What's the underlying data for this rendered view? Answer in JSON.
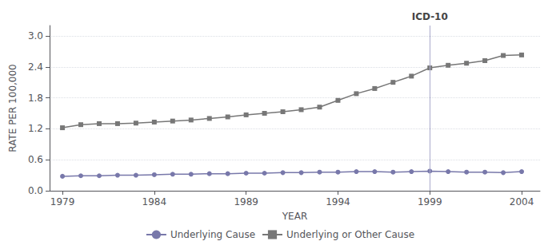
{
  "chart_data": {
    "type": "line",
    "x": [
      1979,
      1980,
      1981,
      1982,
      1983,
      1984,
      1985,
      1986,
      1987,
      1988,
      1989,
      1990,
      1991,
      1992,
      1993,
      1994,
      1995,
      1996,
      1997,
      1998,
      1999,
      2000,
      2001,
      2002,
      2003,
      2004
    ],
    "series": [
      {
        "name": "Underlying Cause",
        "color": "#7878aa",
        "marker": "circle",
        "values": [
          0.28,
          0.29,
          0.29,
          0.3,
          0.3,
          0.31,
          0.32,
          0.32,
          0.33,
          0.33,
          0.34,
          0.34,
          0.35,
          0.35,
          0.36,
          0.36,
          0.37,
          0.37,
          0.36,
          0.37,
          0.38,
          0.37,
          0.36,
          0.36,
          0.35,
          0.37
        ]
      },
      {
        "name": "Underlying or Other Cause",
        "color": "#777777",
        "marker": "square",
        "values": [
          1.22,
          1.28,
          1.3,
          1.3,
          1.31,
          1.33,
          1.35,
          1.37,
          1.4,
          1.43,
          1.47,
          1.5,
          1.53,
          1.57,
          1.62,
          1.75,
          1.88,
          1.98,
          2.1,
          2.22,
          2.38,
          2.43,
          2.47,
          2.52,
          2.62,
          2.63
        ]
      }
    ],
    "xlabel": "YEAR",
    "ylabel": "RATE PER 100,000",
    "xlim": [
      1978.3,
      2005.0
    ],
    "xticks": [
      1979,
      1984,
      1989,
      1994,
      1999,
      2004
    ],
    "ylim": [
      0.0,
      3.2
    ],
    "yticks": [
      {
        "value": 0,
        "label": "0.0"
      },
      0.6,
      1.2,
      1.8,
      2.4,
      {
        "value": 3,
        "label": "3.0"
      }
    ],
    "grid": true,
    "legend": "bottom",
    "annotations": [
      {
        "x": 1999,
        "text": "ICD-10"
      }
    ]
  }
}
